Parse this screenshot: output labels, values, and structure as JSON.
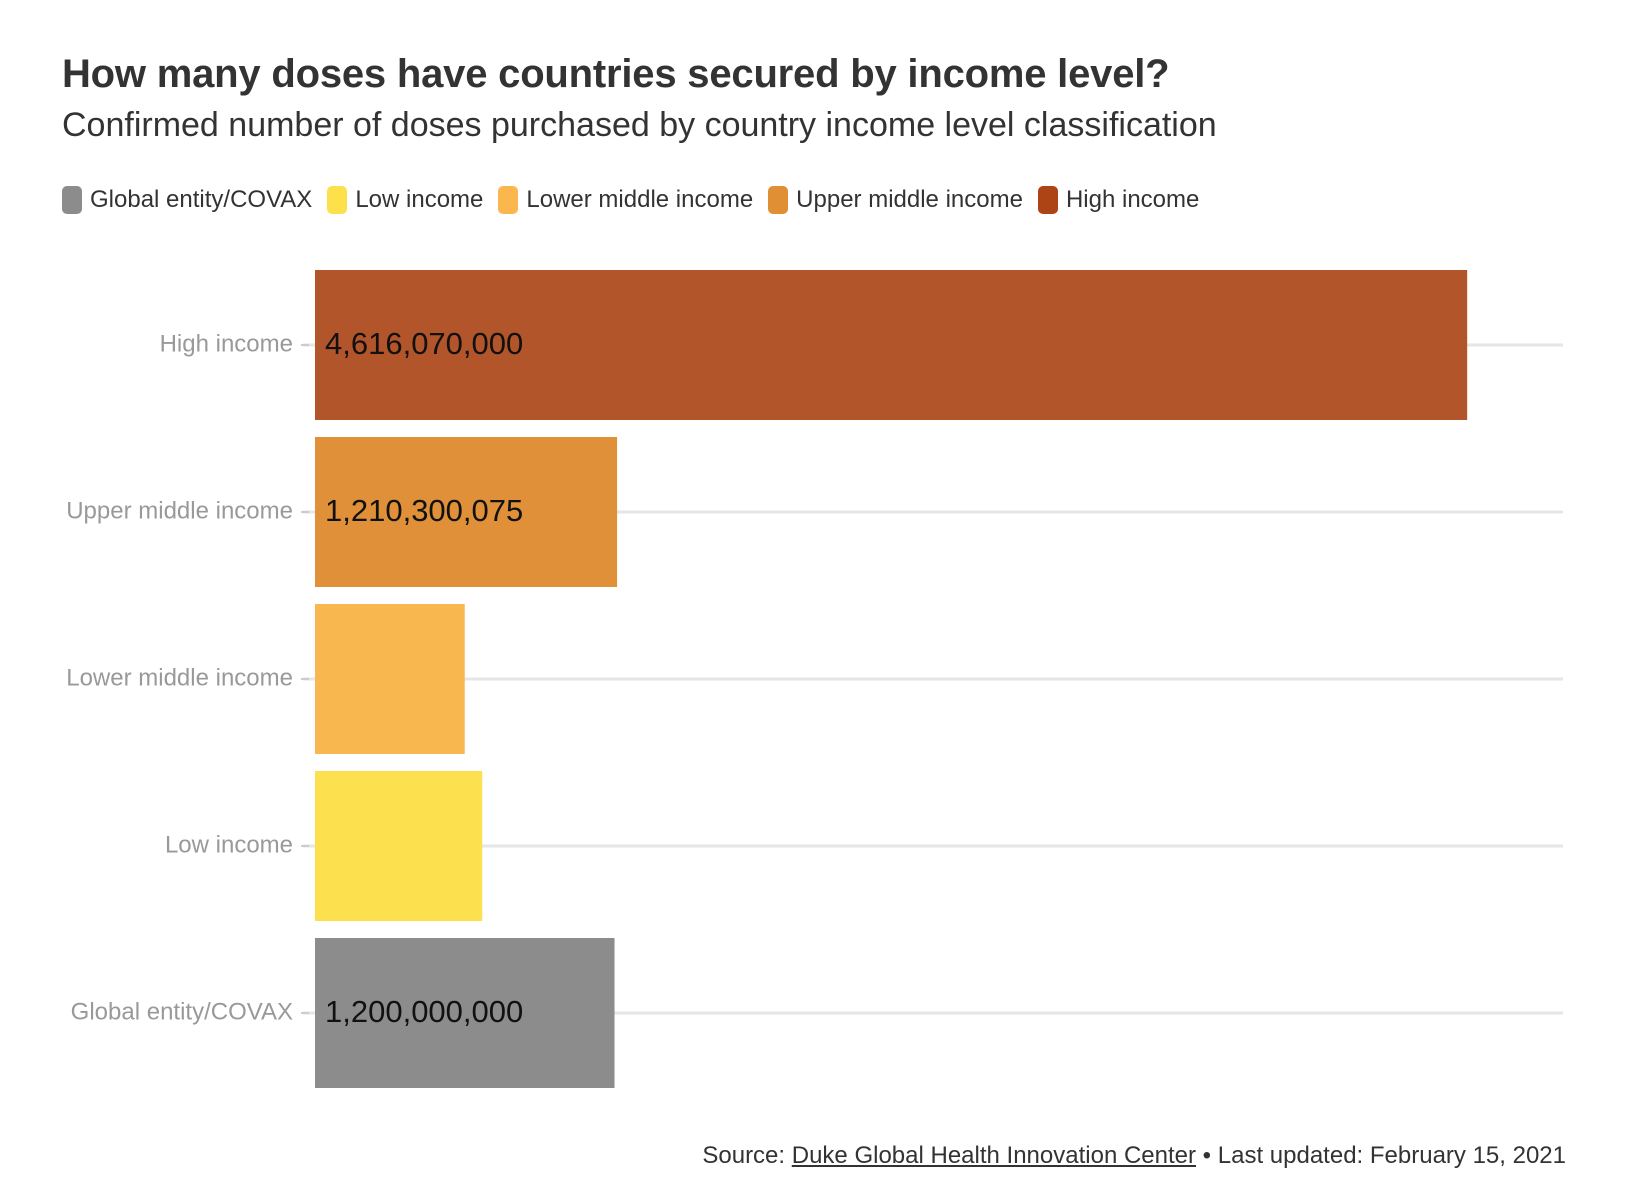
{
  "title": "How many doses have countries secured by income level?",
  "subtitle": "Confirmed number of doses purchased by country income level classification",
  "legend": [
    {
      "label": "Global entity/COVAX",
      "color": "#8c8c8c"
    },
    {
      "label": "Low income",
      "color": "#fde04a"
    },
    {
      "label": "Lower middle income",
      "color": "#f9b74d"
    },
    {
      "label": "Upper middle income",
      "color": "#e08f35"
    },
    {
      "label": "High income",
      "color": "#ad4416"
    }
  ],
  "source": {
    "prefix": "Source: ",
    "link_text": "Duke Global Health Innovation Center",
    "separator": " • ",
    "updated": "Last updated: February 15, 2021"
  },
  "chart_data": {
    "type": "bar",
    "orientation": "horizontal",
    "title": "How many doses have countries secured by income level?",
    "subtitle": "Confirmed number of doses purchased by country income level classification",
    "xlabel": "",
    "ylabel": "",
    "grid": true,
    "legend_position": "top",
    "xlim": [
      0,
      5000000000
    ],
    "categories": [
      "High income",
      "Upper middle income",
      "Lower middle income",
      "Low income",
      "Global entity/COVAX"
    ],
    "values": [
      4616070000,
      1210300075,
      600000000,
      670000000,
      1200000000
    ],
    "colors": [
      "#b3552b",
      "#df9038",
      "#f9b84f",
      "#fde04d",
      "#8c8c8c"
    ],
    "data_labels": [
      "4,616,070,000",
      "1,210,300,075",
      "",
      "",
      "1,200,000,000"
    ]
  }
}
